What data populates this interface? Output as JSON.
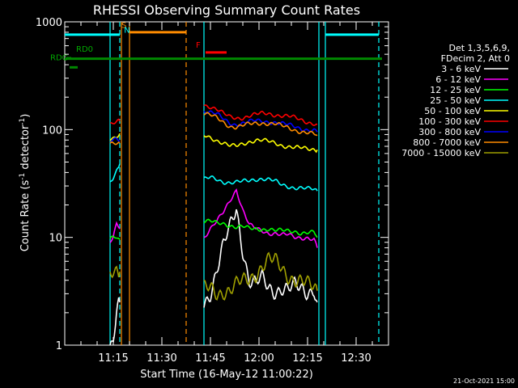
{
  "chart_data": {
    "type": "line",
    "title": "RHESSI Observing Summary Count Rates",
    "xlabel": "Start Time (16-May-12 11:00:22)",
    "ylabel_main": "Count Rate (s",
    "ylabel_sup1": "-1",
    "ylabel_mid": " detector",
    "ylabel_sup2": "-1",
    "ylabel_end": ")",
    "y_scale": "log",
    "ylim": [
      1,
      1000
    ],
    "xlim_minutes": [
      0,
      100
    ],
    "x_ticks": [
      {
        "label": "11:15",
        "minute": 15
      },
      {
        "label": "11:30",
        "minute": 30
      },
      {
        "label": "11:45",
        "minute": 45
      },
      {
        "label": "12:00",
        "minute": 60
      },
      {
        "label": "12:15",
        "minute": 75
      },
      {
        "label": "12:30",
        "minute": 90
      }
    ],
    "y_ticks": [
      {
        "label": "1",
        "value": 1
      },
      {
        "label": "10",
        "value": 10
      },
      {
        "label": "100",
        "value": 100
      },
      {
        "label": "1000",
        "value": 1000
      }
    ],
    "legend_header": [
      "Det 1,3,5,6,9,",
      "FDecim 2, Att 0"
    ],
    "legend_placement": "right",
    "series": [
      {
        "name": "3 - 6 keV",
        "color": "#ffffff",
        "segments": [
          {
            "x": [
              14,
              15,
              16,
              17
            ],
            "y": [
              1.0,
              1.2,
              2.0,
              2.5
            ]
          },
          {
            "x": [
              43,
              45,
              47,
              49,
              51,
              53,
              55,
              57,
              59,
              61,
              63,
              65,
              67,
              69,
              71,
              73,
              75,
              77,
              78
            ],
            "y": [
              2.5,
              3.2,
              5,
              8,
              12,
              19,
              8,
              4,
              3.6,
              4,
              3.4,
              3.3,
              3.5,
              3.2,
              3.4,
              3.3,
              3.2,
              3.5,
              2.5
            ]
          }
        ]
      },
      {
        "name": "6 - 12 keV",
        "color": "#ff00ff",
        "segments": [
          {
            "x": [
              14,
              15,
              16,
              17
            ],
            "y": [
              9,
              10,
              13,
              12
            ]
          },
          {
            "x": [
              43,
              45,
              47,
              49,
              51,
              53,
              55,
              57,
              59,
              61,
              63,
              65,
              67,
              69,
              71,
              73,
              75,
              77,
              78
            ],
            "y": [
              10,
              12,
              14,
              17,
              22,
              28,
              18,
              13,
              12,
              11.5,
              11,
              11,
              10.5,
              10.5,
              10,
              10,
              10,
              9.5,
              8
            ]
          }
        ]
      },
      {
        "name": "12 - 25 keV",
        "color": "#00ff00",
        "segments": [
          {
            "x": [
              14,
              15,
              16,
              17
            ],
            "y": [
              9.5,
              9.8,
              10,
              9.5
            ]
          },
          {
            "x": [
              43,
              45,
              47,
              49,
              51,
              53,
              55,
              57,
              59,
              61,
              63,
              65,
              67,
              69,
              71,
              73,
              75,
              77,
              78
            ],
            "y": [
              14,
              14,
              13.5,
              13.5,
              13,
              12.5,
              12.5,
              12,
              12,
              12,
              12,
              11.5,
              11.5,
              11.5,
              11.5,
              11,
              11,
              11,
              10
            ]
          }
        ]
      },
      {
        "name": "25 - 50 keV",
        "color": "#00ffff",
        "segments": [
          {
            "x": [
              14,
              15,
              16,
              17
            ],
            "y": [
              32,
              36,
              42,
              48
            ]
          },
          {
            "x": [
              43,
              45,
              47,
              49,
              51,
              53,
              55,
              57,
              59,
              61,
              63,
              65,
              67,
              69,
              71,
              73,
              75,
              77,
              78
            ],
            "y": [
              34,
              36,
              35,
              33,
              32,
              32,
              33,
              34,
              35,
              35,
              34,
              33,
              31,
              30,
              29,
              28.5,
              28,
              28,
              27
            ]
          }
        ]
      },
      {
        "name": "50 - 100 keV",
        "color": "#ffff00",
        "segments": [
          {
            "x": [
              14,
              15,
              16,
              17
            ],
            "y": [
              83,
              85,
              88,
              92
            ]
          },
          {
            "x": [
              43,
              45,
              47,
              49,
              51,
              53,
              55,
              57,
              59,
              61,
              63,
              65,
              67,
              69,
              71,
              73,
              75,
              77,
              78
            ],
            "y": [
              88,
              85,
              80,
              75,
              70,
              70,
              74,
              78,
              80,
              79,
              77,
              75,
              72,
              70,
              68,
              67,
              66,
              66,
              65
            ]
          }
        ]
      },
      {
        "name": "100 - 300 keV",
        "color": "#ff0000",
        "segments": [
          {
            "x": [
              14,
              15,
              16,
              17
            ],
            "y": [
              115,
              117,
              118,
              120
            ]
          },
          {
            "x": [
              43,
              45,
              47,
              49,
              51,
              53,
              55,
              57,
              59,
              61,
              63,
              65,
              67,
              69,
              71,
              73,
              75,
              77,
              78
            ],
            "y": [
              170,
              165,
              155,
              140,
              130,
              128,
              130,
              135,
              138,
              140,
              140,
              138,
              136,
              133,
              128,
              122,
              118,
              115,
              112
            ]
          }
        ]
      },
      {
        "name": "300 - 800 keV",
        "color": "#0000ff",
        "segments": [
          {
            "x": [
              14,
              15,
              16,
              17
            ],
            "y": [
              78,
              79,
              80,
              78
            ]
          },
          {
            "x": [
              43,
              45,
              47,
              49,
              51,
              53,
              55,
              57,
              59,
              61,
              63,
              65,
              67,
              69,
              71,
              73,
              75,
              77,
              78
            ],
            "y": [
              150,
              145,
              138,
              125,
              115,
              112,
              115,
              118,
              120,
              120,
              119,
              117,
              113,
              110,
              107,
              103,
              100,
              98,
              95
            ]
          }
        ]
      },
      {
        "name": "800 - 7000 keV",
        "color": "#ff8c00",
        "segments": [
          {
            "x": [
              14,
              15,
              16,
              17
            ],
            "y": [
              72,
              73,
              74,
              75
            ]
          },
          {
            "x": [
              43,
              45,
              47,
              49,
              51,
              53,
              55,
              57,
              59,
              61,
              63,
              65,
              67,
              69,
              71,
              73,
              75,
              77,
              78
            ],
            "y": [
              140,
              135,
              128,
              118,
              108,
              105,
              108,
              112,
              115,
              116,
              114,
              112,
              108,
              104,
              100,
              96,
              93,
              90,
              88
            ]
          }
        ]
      },
      {
        "name": "7000 - 15000 keV",
        "color": "#a0a000",
        "segments": [
          {
            "x": [
              14,
              15,
              16,
              17
            ],
            "y": [
              4.5,
              5,
              5.2,
              4.8
            ]
          },
          {
            "x": [
              43,
              45,
              47,
              49,
              51,
              53,
              55,
              57,
              59,
              61,
              63,
              65,
              67,
              69,
              71,
              73,
              75,
              77,
              78
            ],
            "y": [
              3.2,
              3.3,
              3.1,
              3.3,
              3.2,
              3.5,
              3.8,
              4.2,
              4.8,
              5.5,
              6,
              5.8,
              5.2,
              4.6,
              4.2,
              3.8,
              3.5,
              3.4,
              3.2
            ]
          }
        ]
      }
    ],
    "annotations": [
      {
        "text": "S",
        "color": "#ff8c00",
        "minute": 17.5,
        "value": 880
      },
      {
        "text": "N",
        "color": "#00ffff",
        "minute": 18.3,
        "value": 790
      },
      {
        "text": "F",
        "color": "#ff0000",
        "minute": 40.5,
        "value": 575
      },
      {
        "text": "RD0",
        "color": "#00aa00",
        "minute": 3.5,
        "value": 530
      },
      {
        "text": "RDC",
        "color": "#00aa00",
        "minute": -4.5,
        "value": 440
      }
    ],
    "bars": [
      {
        "color": "#00ffff",
        "x0": 0,
        "x1": 17,
        "value": 760
      },
      {
        "color": "#00ffff",
        "x0": 80.5,
        "x1": 97,
        "value": 760
      },
      {
        "color": "#ff8c00",
        "x0": 20,
        "x1": 37.5,
        "value": 800
      },
      {
        "color": "#ff0000",
        "x0": 43.5,
        "x1": 50,
        "value": 520
      },
      {
        "color": "#008800",
        "x0": 0,
        "x1": 98,
        "value": 455
      },
      {
        "color": "#008800",
        "x0": 0.5,
        "x1": 2,
        "value": 460
      },
      {
        "color": "#008800",
        "x0": 1.5,
        "x1": 4,
        "value": 378
      }
    ],
    "vlines": [
      {
        "color": "#00ffff",
        "minute": 14,
        "dashed": false
      },
      {
        "color": "#00ffff",
        "minute": 17,
        "dashed": true
      },
      {
        "color": "#ff8c00",
        "minute": 17.5,
        "dashed": false
      },
      {
        "color": "#ff8c00",
        "minute": 20,
        "dashed": false
      },
      {
        "color": "#ff8c00",
        "minute": 37.5,
        "dashed": true
      },
      {
        "color": "#00ffff",
        "minute": 43,
        "dashed": false
      },
      {
        "color": "#00ffff",
        "minute": 78.5,
        "dashed": false
      },
      {
        "color": "#00ffff",
        "minute": 80.5,
        "dashed": false
      },
      {
        "color": "#00ffff",
        "minute": 97,
        "dashed": true
      }
    ],
    "timestamp": "21-Oct-2021 15:00"
  }
}
